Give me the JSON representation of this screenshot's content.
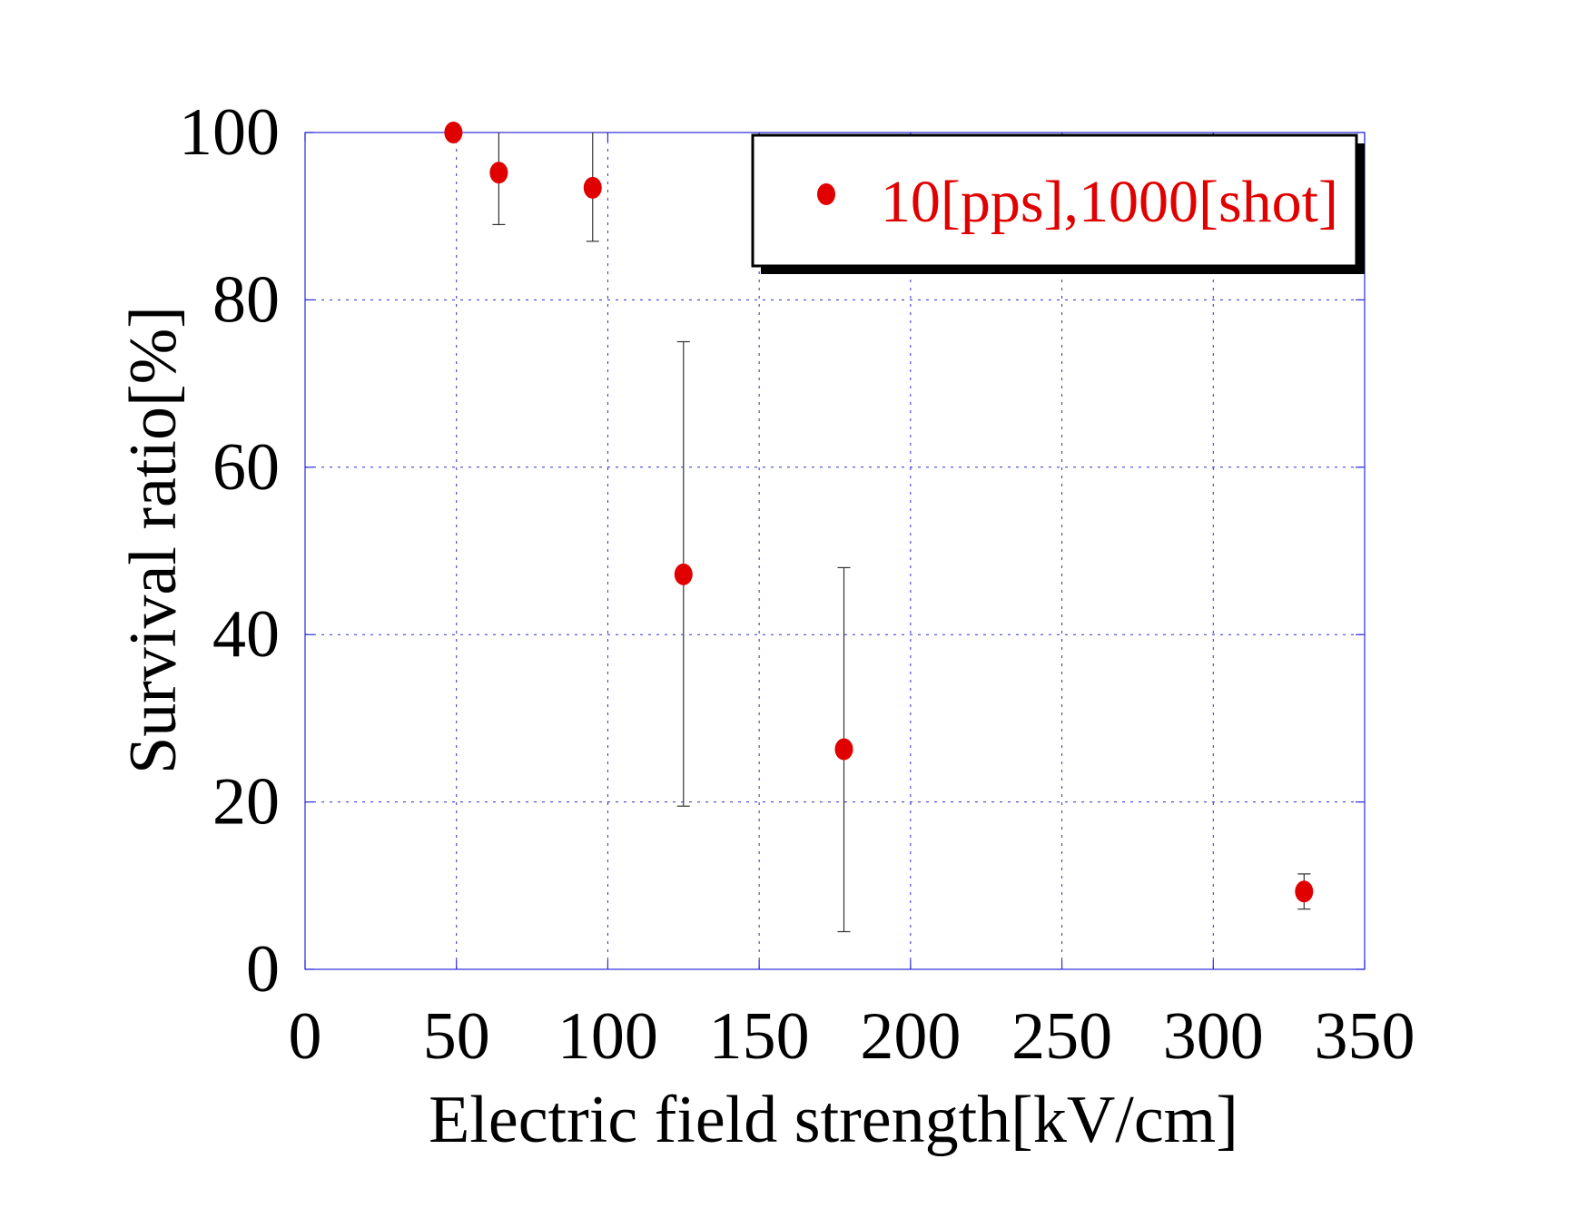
{
  "chart_data": {
    "type": "scatter",
    "title": "",
    "xlabel": "Electric field strength[kV/cm]",
    "ylabel": "Survival ratio[%]",
    "xlim": [
      0,
      350
    ],
    "ylim": [
      0,
      100
    ],
    "xticks": [
      0,
      50,
      100,
      150,
      200,
      250,
      300,
      350
    ],
    "yticks": [
      0,
      20,
      40,
      60,
      80,
      100
    ],
    "xtick_labels": [
      "0",
      "50",
      "100",
      "150",
      "200",
      "250",
      "300",
      "350"
    ],
    "ytick_labels": [
      "0",
      "20",
      "40",
      "60",
      "80",
      "100"
    ],
    "grid": true,
    "legend_position": "top-right",
    "series": [
      {
        "name": "10[pps],1000[shot]",
        "color": "#e00000",
        "points": [
          {
            "x": 49,
            "y": 100,
            "err_low": 100,
            "err_high": 100
          },
          {
            "x": 64,
            "y": 95.2,
            "err_low": 89,
            "err_high": 100
          },
          {
            "x": 95,
            "y": 93.4,
            "err_low": 87,
            "err_high": 100
          },
          {
            "x": 125,
            "y": 47.2,
            "err_low": 19.5,
            "err_high": 75
          },
          {
            "x": 178,
            "y": 26.3,
            "err_low": 4.5,
            "err_high": 48
          },
          {
            "x": 330,
            "y": 9.3,
            "err_low": 7.2,
            "err_high": 11.4
          }
        ]
      }
    ]
  }
}
